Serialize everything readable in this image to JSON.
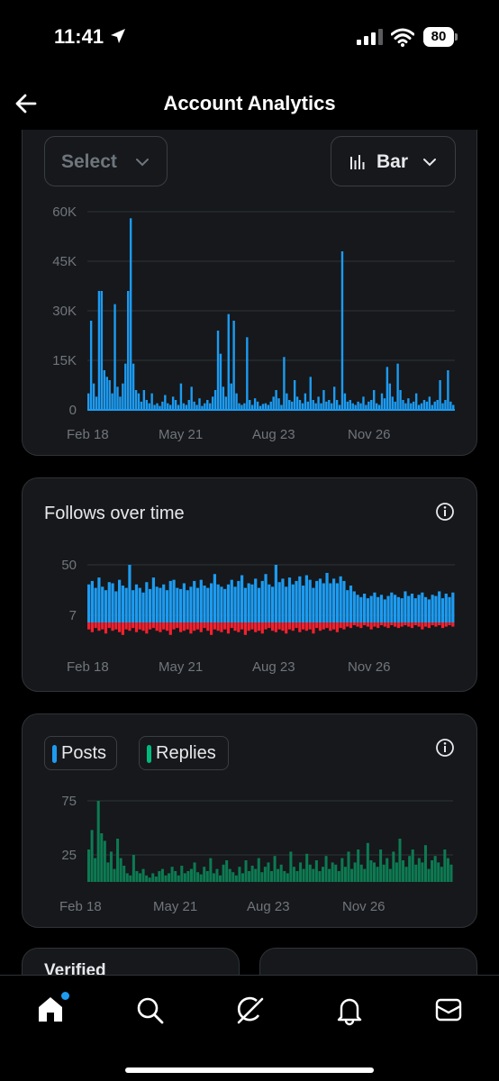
{
  "status_bar": {
    "time": "11:41",
    "battery": "80"
  },
  "header": {
    "title": "Account Analytics"
  },
  "controls": {
    "select_label": "Select",
    "chart_type_label": "Bar"
  },
  "card2": {
    "title": "Follows over time"
  },
  "card3": {
    "legend": [
      "Posts",
      "Replies"
    ]
  },
  "mini_cards": [
    {
      "title": "Verified"
    },
    {
      "title": ""
    }
  ],
  "icons": {
    "back": "arrow-left-icon",
    "location": "location-arrow-icon",
    "signal": "cellular-signal-icon",
    "wifi": "wifi-icon",
    "chart": "bar-chart-icon",
    "chevron": "chevron-down-icon",
    "info": "info-icon",
    "home": "home-icon",
    "search": "search-icon",
    "grok": "grok-icon",
    "notifications": "bell-icon",
    "messages": "mail-icon"
  },
  "colors": {
    "blue": "#1d9bf0",
    "red": "#f4212e",
    "green": "#00ba7c",
    "card": "#16181c"
  },
  "chart_data": [
    {
      "type": "bar",
      "x_ticks": [
        "Feb 18",
        "May 21",
        "Aug 23",
        "Nov 26"
      ],
      "y_ticks": [
        "0",
        "15K",
        "30K",
        "45K",
        "60K"
      ],
      "ylim": [
        0,
        60000
      ],
      "series": [
        {
          "color": "#1d9bf0",
          "values": [
            5000,
            27000,
            8000,
            4000,
            36000,
            36000,
            12000,
            10000,
            9000,
            5000,
            32000,
            7000,
            4000,
            8000,
            14000,
            36000,
            58000,
            14000,
            6000,
            5000,
            2500,
            6000,
            3000,
            2000,
            5000,
            1500,
            2000,
            1200,
            2500,
            4500,
            2000,
            1500,
            4000,
            3000,
            1500,
            8000,
            2000,
            1500,
            3000,
            7000,
            2500,
            1500,
            3500,
            1200,
            2000,
            3000,
            2000,
            4000,
            6000,
            24000,
            17000,
            7000,
            4000,
            29000,
            8000,
            27000,
            5000,
            2000,
            1500,
            2000,
            22000,
            3000,
            1500,
            3500,
            2500,
            1200,
            1800,
            2000,
            1500,
            2500,
            4000,
            6000,
            3500,
            1500,
            16000,
            5000,
            3000,
            2500,
            9000,
            4000,
            3000,
            2000,
            5000,
            2500,
            10000,
            3000,
            2000,
            4000,
            2000,
            6000,
            2500,
            3000,
            2000,
            7000,
            3000,
            1500,
            48000,
            5000,
            2500,
            3000,
            2000,
            1500,
            2500,
            2000,
            4000,
            1500,
            2500,
            3000,
            6000,
            2000,
            1500,
            5000,
            3500,
            13000,
            8000,
            4000,
            2500,
            14000,
            6000,
            3000,
            2000,
            3500,
            2000,
            2500,
            5000,
            1500,
            2000,
            3000,
            2500,
            4000,
            1500,
            2500,
            3000,
            9000,
            2000,
            3000,
            12000,
            2500,
            1500
          ]
        }
      ]
    },
    {
      "type": "bar",
      "x_ticks": [
        "Feb 18",
        "May 21",
        "Aug 23",
        "Nov 26"
      ],
      "y_ticks": [
        "50",
        "7"
      ],
      "series": [
        {
          "color": "#1d9bf0",
          "values": [
            33,
            36,
            30,
            39,
            31,
            28,
            35,
            34,
            27,
            37,
            32,
            30,
            50,
            28,
            33,
            30,
            26,
            35,
            29,
            39,
            31,
            30,
            33,
            28,
            36,
            37,
            30,
            29,
            34,
            28,
            31,
            36,
            30,
            37,
            32,
            30,
            34,
            42,
            33,
            31,
            29,
            33,
            37,
            31,
            36,
            41,
            30,
            34,
            33,
            38,
            30,
            36,
            42,
            33,
            31,
            50,
            35,
            38,
            31,
            39,
            33,
            36,
            40,
            32,
            41,
            37,
            30,
            36,
            38,
            34,
            43,
            34,
            38,
            34,
            40,
            36,
            28,
            32,
            27,
            24,
            22,
            25,
            21,
            23,
            26,
            22,
            24,
            20,
            23,
            26,
            24,
            22,
            21,
            27,
            23,
            25,
            21,
            24,
            26,
            22,
            20,
            24,
            23,
            27,
            21,
            25,
            22,
            26
          ]
        },
        {
          "color": "#f4212e",
          "values": [
            -5,
            -7,
            -4,
            -6,
            -5,
            -8,
            -4,
            -6,
            -5,
            -7,
            -9,
            -5,
            -6,
            -4,
            -7,
            -5,
            -6,
            -8,
            -5,
            -4,
            -6,
            -7,
            -5,
            -6,
            -9,
            -5,
            -4,
            -7,
            -6,
            -5,
            -8,
            -6,
            -5,
            -7,
            -4,
            -6,
            -9,
            -5,
            -6,
            -7,
            -5,
            -8,
            -4,
            -6,
            -7,
            -5,
            -9,
            -6,
            -5,
            -7,
            -6,
            -8,
            -5,
            -4,
            -6,
            -7,
            -5,
            -6,
            -8,
            -5,
            -6,
            -4,
            -7,
            -5,
            -6,
            -5,
            -8,
            -4,
            -6,
            -5,
            -4,
            -6,
            -5,
            -7,
            -4,
            -5,
            -3,
            -4,
            -2,
            -3,
            -4,
            -2,
            -3,
            -5,
            -3,
            -4,
            -2,
            -3,
            -4,
            -2,
            -3,
            -4,
            -3,
            -2,
            -3,
            -4,
            -2,
            -3,
            -5,
            -3,
            -4,
            -2,
            -3,
            -2,
            -4,
            -3,
            -2,
            -3
          ]
        }
      ]
    },
    {
      "type": "bar",
      "legend": [
        "Posts",
        "Replies"
      ],
      "x_ticks": [
        "Feb 18",
        "May 21",
        "Aug 23",
        "Nov 26"
      ],
      "y_ticks": [
        "75",
        "25"
      ],
      "series": [
        {
          "name": "Replies",
          "color": "#00ba7c",
          "values": [
            30,
            48,
            22,
            75,
            45,
            38,
            18,
            28,
            12,
            40,
            22,
            15,
            8,
            6,
            25,
            10,
            8,
            12,
            6,
            4,
            8,
            5,
            10,
            12,
            6,
            8,
            14,
            10,
            6,
            15,
            8,
            10,
            12,
            18,
            9,
            7,
            14,
            10,
            22,
            8,
            12,
            6,
            16,
            20,
            12,
            9,
            6,
            14,
            8,
            20,
            10,
            15,
            12,
            22,
            9,
            14,
            18,
            10,
            24,
            12,
            16,
            10,
            8,
            28,
            14,
            10,
            18,
            12,
            26,
            16,
            12,
            20,
            10,
            14,
            24,
            12,
            18,
            16,
            10,
            22,
            14,
            28,
            12,
            18,
            30,
            16,
            12,
            36,
            20,
            18,
            14,
            30,
            16,
            22,
            12,
            28,
            18,
            40,
            20,
            14,
            24,
            30,
            16,
            22,
            18,
            34,
            12,
            20,
            24,
            18,
            14,
            30,
            22,
            16
          ]
        }
      ]
    }
  ]
}
